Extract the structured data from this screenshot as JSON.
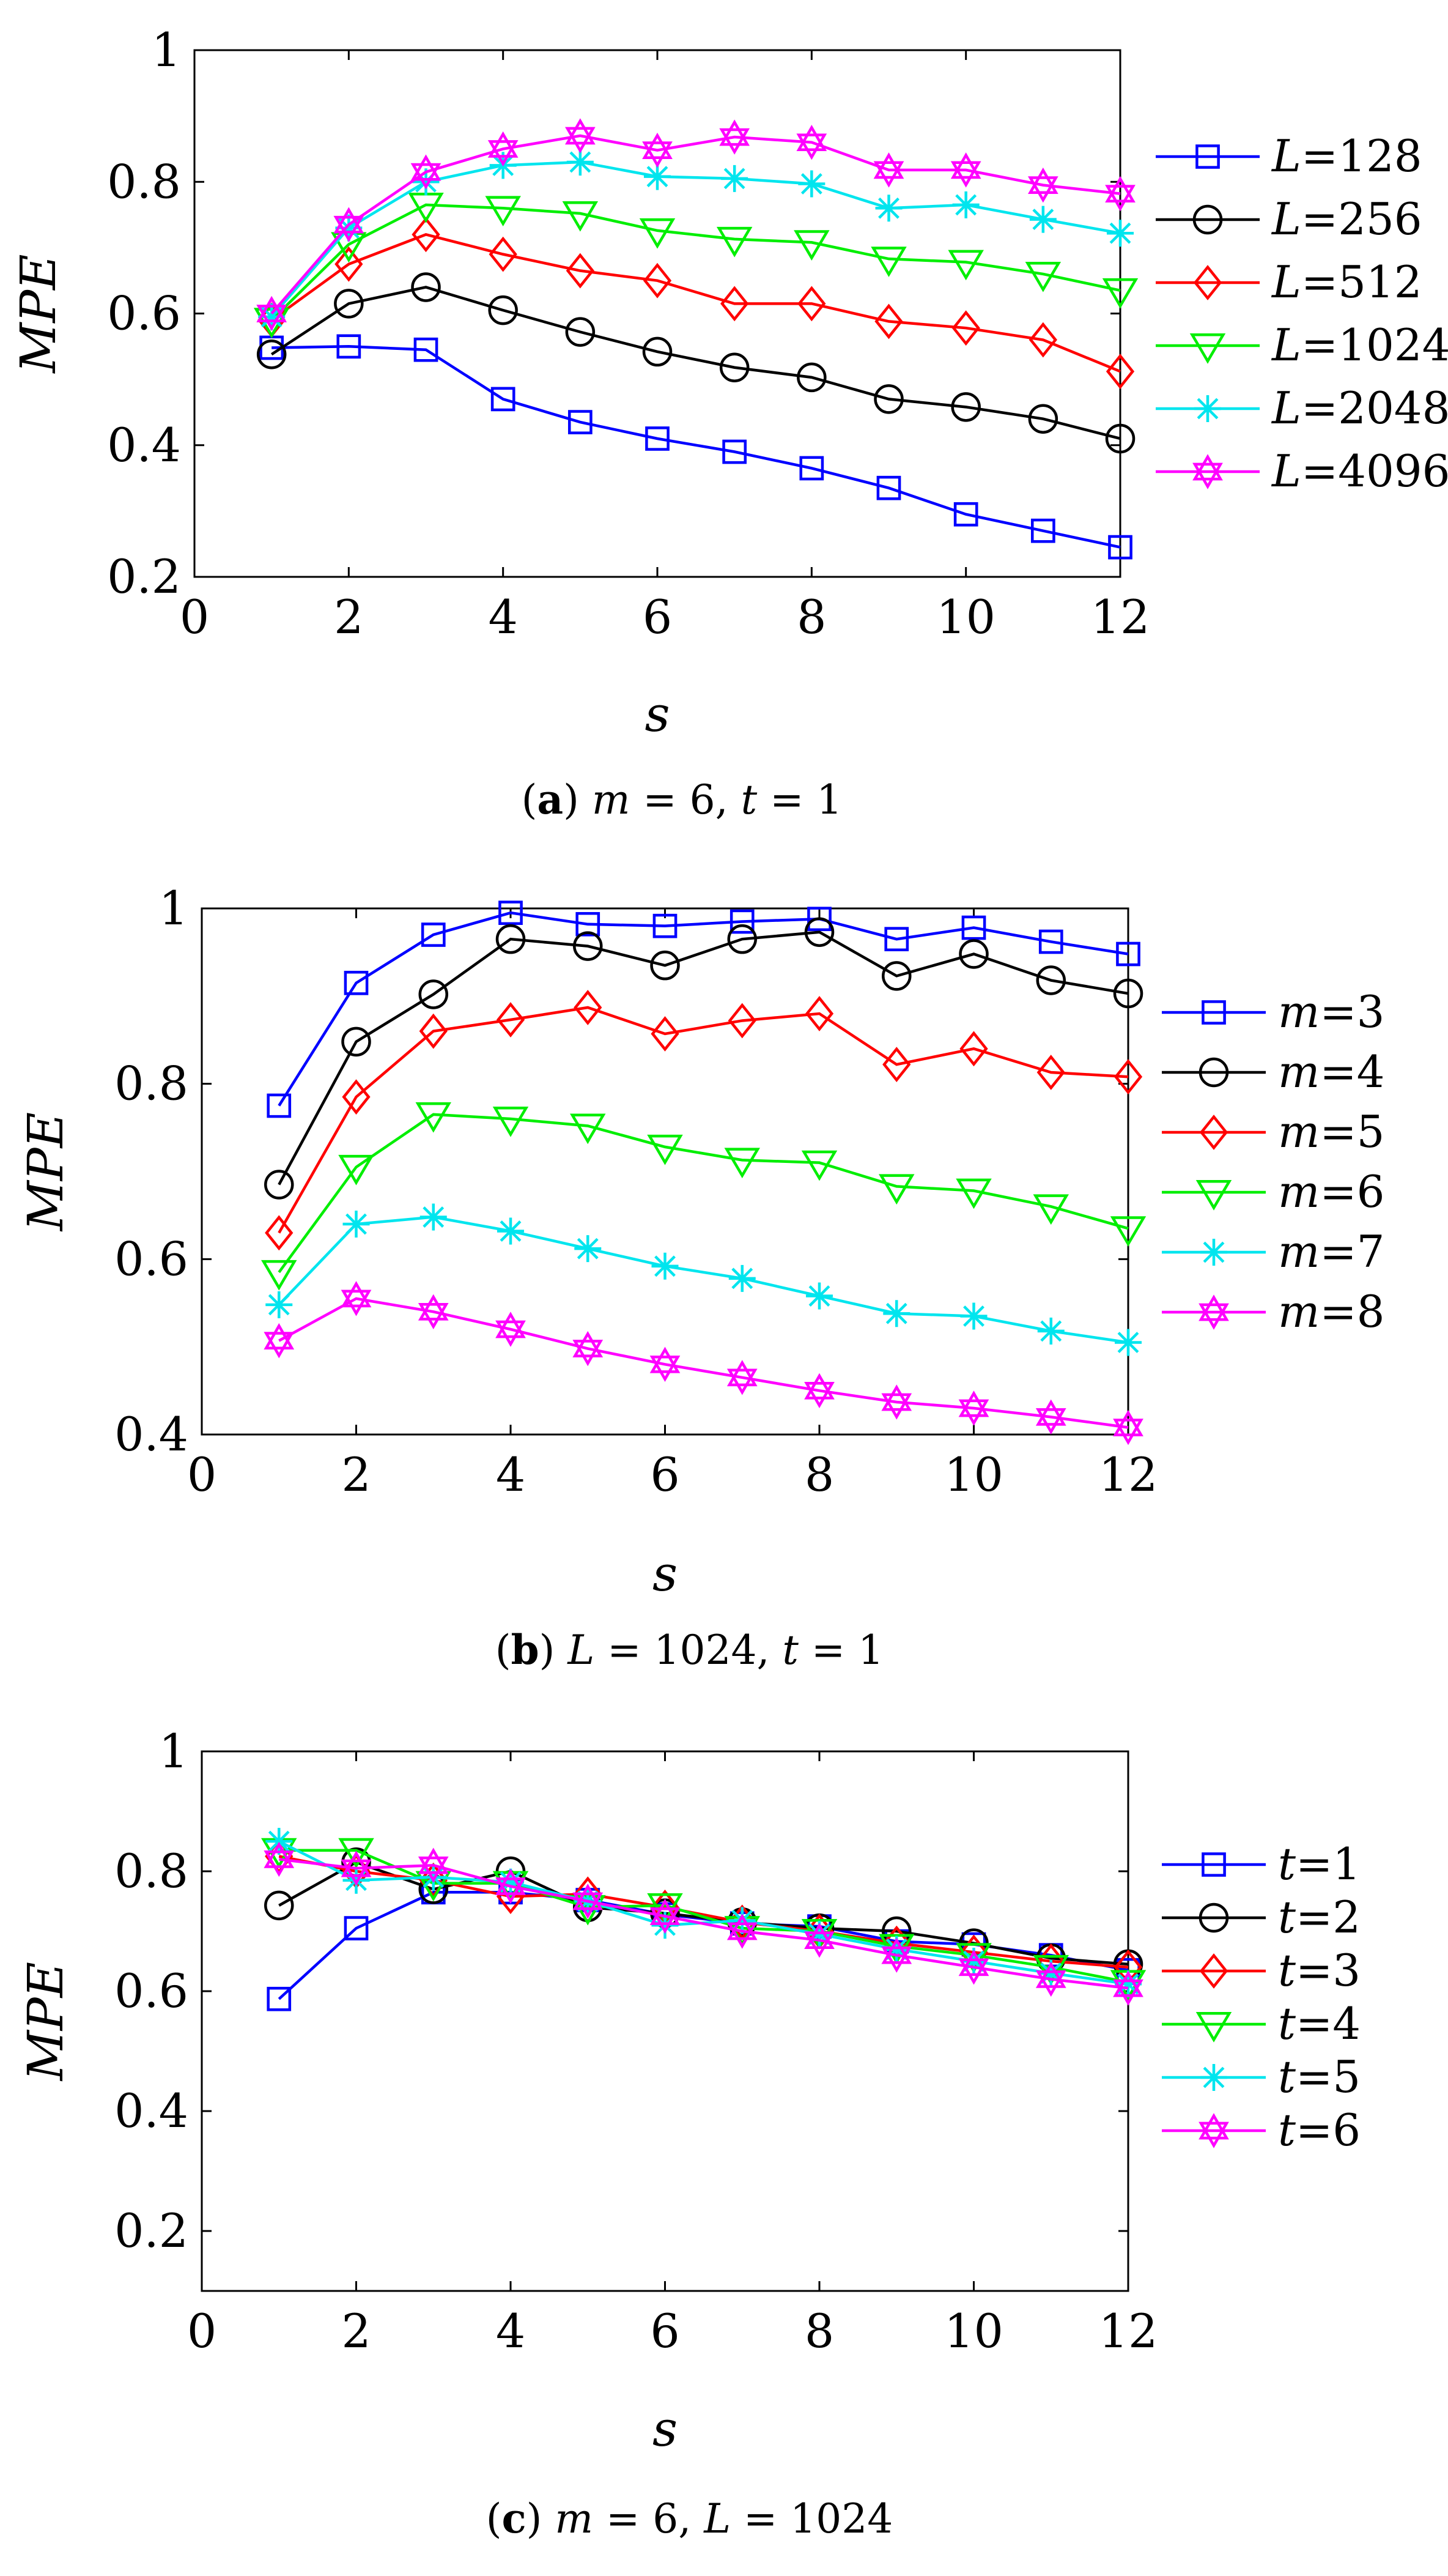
{
  "chart_data": [
    {
      "type": "line",
      "panel": "a",
      "xlabel": "s",
      "ylabel": "MPE",
      "xlim": [
        0,
        12
      ],
      "ylim": [
        0.2,
        1
      ],
      "x_ticks": [
        "0",
        "2",
        "4",
        "6",
        "8",
        "10",
        "12"
      ],
      "y_ticks": [
        "0.2",
        "0.4",
        "0.6",
        "0.8",
        "1"
      ],
      "caption": {
        "label": "a",
        "text": "m = 6, t = 1"
      },
      "legend_position": "outside-right",
      "x": [
        1,
        2,
        3,
        4,
        5,
        6,
        7,
        8,
        9,
        10,
        11,
        12
      ],
      "series": [
        {
          "name": "L=128",
          "var": "L",
          "val": "128",
          "color": "#0000ff",
          "marker": "square",
          "values": [
            0.548,
            0.55,
            0.545,
            0.47,
            0.435,
            0.41,
            0.39,
            0.365,
            0.335,
            0.295,
            0.27,
            0.245
          ]
        },
        {
          "name": "L=256",
          "var": "L",
          "val": "256",
          "color": "#000000",
          "marker": "circle",
          "values": [
            0.538,
            0.615,
            0.64,
            0.605,
            0.572,
            0.542,
            0.518,
            0.503,
            0.47,
            0.458,
            0.44,
            0.41
          ]
        },
        {
          "name": "L=512",
          "var": "L",
          "val": "512",
          "color": "#ff0000",
          "marker": "diamond",
          "values": [
            0.59,
            0.675,
            0.72,
            0.69,
            0.665,
            0.65,
            0.615,
            0.615,
            0.588,
            0.578,
            0.56,
            0.512
          ]
        },
        {
          "name": "L=1024",
          "var": "L",
          "val": "1024",
          "color": "#00ee00",
          "marker": "triangle-down",
          "values": [
            0.59,
            0.705,
            0.765,
            0.76,
            0.752,
            0.726,
            0.713,
            0.708,
            0.683,
            0.678,
            0.66,
            0.635
          ]
        },
        {
          "name": "L=2048",
          "var": "L",
          "val": "2048",
          "color": "#00e5ee",
          "marker": "asterisk",
          "values": [
            0.595,
            0.73,
            0.8,
            0.825,
            0.83,
            0.808,
            0.805,
            0.797,
            0.76,
            0.765,
            0.743,
            0.722
          ]
        },
        {
          "name": "L=4096",
          "var": "L",
          "val": "4096",
          "color": "#ff00ff",
          "marker": "hexagram",
          "values": [
            0.6,
            0.735,
            0.815,
            0.85,
            0.87,
            0.848,
            0.868,
            0.86,
            0.818,
            0.818,
            0.795,
            0.782
          ]
        }
      ]
    },
    {
      "type": "line",
      "panel": "b",
      "xlabel": "s",
      "ylabel": "MPE",
      "xlim": [
        0,
        12
      ],
      "ylim": [
        0.4,
        1
      ],
      "x_ticks": [
        "0",
        "2",
        "4",
        "6",
        "8",
        "10",
        "12"
      ],
      "y_ticks": [
        "0.4",
        "0.6",
        "0.8",
        "1"
      ],
      "caption": {
        "label": "b",
        "text": "L = 1024, t = 1"
      },
      "legend_position": "outside-right",
      "x": [
        1,
        2,
        3,
        4,
        5,
        6,
        7,
        8,
        9,
        10,
        11,
        12
      ],
      "series": [
        {
          "name": "m=3",
          "var": "m",
          "val": "3",
          "color": "#0000ff",
          "marker": "square",
          "values": [
            0.775,
            0.915,
            0.97,
            0.995,
            0.982,
            0.98,
            0.985,
            0.988,
            0.965,
            0.978,
            0.962,
            0.948
          ]
        },
        {
          "name": "m=4",
          "var": "m",
          "val": "4",
          "color": "#000000",
          "marker": "circle",
          "values": [
            0.685,
            0.848,
            0.902,
            0.965,
            0.957,
            0.935,
            0.965,
            0.973,
            0.923,
            0.948,
            0.918,
            0.903
          ]
        },
        {
          "name": "m=5",
          "var": "m",
          "val": "5",
          "color": "#ff0000",
          "marker": "diamond",
          "values": [
            0.63,
            0.785,
            0.86,
            0.873,
            0.887,
            0.857,
            0.872,
            0.88,
            0.822,
            0.84,
            0.813,
            0.808
          ]
        },
        {
          "name": "m=6",
          "var": "m",
          "val": "6",
          "color": "#00ee00",
          "marker": "triangle-down",
          "values": [
            0.585,
            0.705,
            0.765,
            0.76,
            0.752,
            0.728,
            0.713,
            0.71,
            0.683,
            0.678,
            0.66,
            0.635
          ]
        },
        {
          "name": "m=7",
          "var": "m",
          "val": "7",
          "color": "#00e5ee",
          "marker": "asterisk",
          "values": [
            0.548,
            0.64,
            0.648,
            0.632,
            0.612,
            0.592,
            0.578,
            0.558,
            0.538,
            0.535,
            0.518,
            0.505
          ]
        },
        {
          "name": "m=8",
          "var": "m",
          "val": "8",
          "color": "#ff00ff",
          "marker": "hexagram",
          "values": [
            0.507,
            0.555,
            0.54,
            0.52,
            0.498,
            0.48,
            0.465,
            0.45,
            0.437,
            0.43,
            0.42,
            0.408
          ]
        }
      ]
    },
    {
      "type": "line",
      "panel": "c",
      "xlabel": "s",
      "ylabel": "MPE",
      "xlim": [
        0,
        12
      ],
      "ylim": [
        0.1,
        1
      ],
      "x_ticks": [
        "0",
        "2",
        "4",
        "6",
        "8",
        "10",
        "12"
      ],
      "y_ticks": [
        "0.2",
        "0.4",
        "0.6",
        "0.8",
        "1"
      ],
      "caption": {
        "label": "c",
        "text": "m = 6, L = 1024"
      },
      "legend_position": "outside-right",
      "x": [
        1,
        2,
        3,
        4,
        5,
        6,
        7,
        8,
        9,
        10,
        11,
        12
      ],
      "series": [
        {
          "name": "t=1",
          "var": "t",
          "val": "1",
          "color": "#0000ff",
          "marker": "square",
          "values": [
            0.587,
            0.705,
            0.765,
            0.765,
            0.752,
            0.728,
            0.713,
            0.708,
            0.683,
            0.678,
            0.66,
            0.635
          ]
        },
        {
          "name": "t=2",
          "var": "t",
          "val": "2",
          "color": "#000000",
          "marker": "circle",
          "values": [
            0.743,
            0.815,
            0.77,
            0.8,
            0.74,
            0.73,
            0.715,
            0.705,
            0.7,
            0.68,
            0.655,
            0.645
          ]
        },
        {
          "name": "t=3",
          "var": "t",
          "val": "3",
          "color": "#ff0000",
          "marker": "diamond",
          "values": [
            0.825,
            0.8,
            0.785,
            0.758,
            0.762,
            0.74,
            0.715,
            0.7,
            0.68,
            0.665,
            0.65,
            0.64
          ]
        },
        {
          "name": "t=4",
          "var": "t",
          "val": "4",
          "color": "#00ee00",
          "marker": "triangle-down",
          "values": [
            0.835,
            0.835,
            0.78,
            0.78,
            0.74,
            0.743,
            0.705,
            0.7,
            0.675,
            0.66,
            0.64,
            0.615
          ]
        },
        {
          "name": "t=5",
          "var": "t",
          "val": "5",
          "color": "#00e5ee",
          "marker": "asterisk",
          "values": [
            0.85,
            0.785,
            0.79,
            0.782,
            0.75,
            0.71,
            0.718,
            0.695,
            0.67,
            0.65,
            0.63,
            0.612
          ]
        },
        {
          "name": "t=6",
          "var": "t",
          "val": "6",
          "color": "#ff00ff",
          "marker": "hexagram",
          "values": [
            0.82,
            0.805,
            0.81,
            0.775,
            0.75,
            0.725,
            0.7,
            0.685,
            0.66,
            0.64,
            0.62,
            0.605
          ]
        }
      ]
    }
  ]
}
